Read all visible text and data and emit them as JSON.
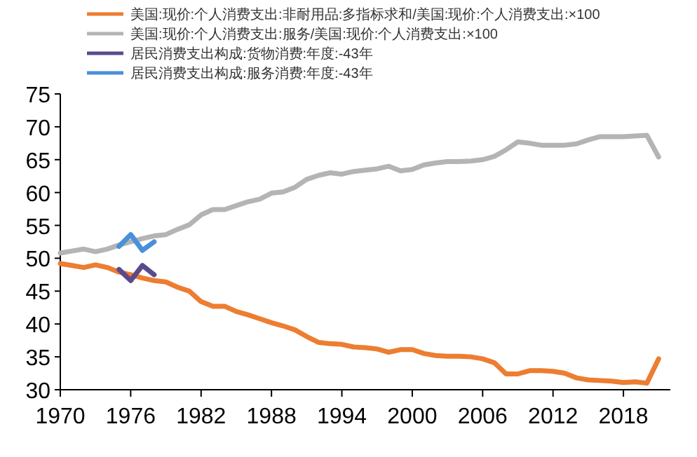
{
  "chart_data": {
    "type": "line",
    "x": [
      1970,
      1971,
      1972,
      1973,
      1974,
      1975,
      1976,
      1977,
      1978,
      1979,
      1980,
      1981,
      1982,
      1983,
      1984,
      1985,
      1986,
      1987,
      1988,
      1989,
      1990,
      1991,
      1992,
      1993,
      1994,
      1995,
      1996,
      1997,
      1998,
      1999,
      2000,
      2001,
      2002,
      2003,
      2004,
      2005,
      2006,
      2007,
      2008,
      2009,
      2010,
      2011,
      2012,
      2013,
      2014,
      2015,
      2016,
      2017,
      2018,
      2019,
      2020,
      2021
    ],
    "series": [
      {
        "name": "美国:现价:个人消费支出:非耐用品:多指标求和/美国:现价:个人消费支出:×100",
        "color": "#ed7d31",
        "values": [
          49.2,
          48.9,
          48.6,
          49.0,
          48.6,
          47.9,
          47.5,
          47.0,
          46.6,
          46.4,
          45.6,
          45.0,
          43.4,
          42.7,
          42.7,
          41.9,
          41.4,
          40.8,
          40.2,
          39.7,
          39.1,
          38.1,
          37.2,
          37.0,
          36.9,
          36.5,
          36.4,
          36.2,
          35.7,
          36.1,
          36.1,
          35.5,
          35.2,
          35.1,
          35.1,
          35.0,
          34.7,
          34.1,
          32.4,
          32.4,
          32.9,
          32.9,
          32.8,
          32.5,
          31.8,
          31.5,
          31.4,
          31.3,
          31.1,
          31.2,
          31.0,
          34.7
        ]
      },
      {
        "name": "美国:现价:个人消费支出:服务/美国:现价:个人消费支出:×100",
        "color": "#b4b4b4",
        "values": [
          50.8,
          51.1,
          51.4,
          51.0,
          51.4,
          52.0,
          52.5,
          53.0,
          53.4,
          53.6,
          54.4,
          55.1,
          56.6,
          57.4,
          57.4,
          58.0,
          58.6,
          59.0,
          59.9,
          60.1,
          60.8,
          62.0,
          62.6,
          63.0,
          62.8,
          63.2,
          63.4,
          63.6,
          64.0,
          63.3,
          63.5,
          64.2,
          64.5,
          64.7,
          64.7,
          64.8,
          65.0,
          65.5,
          66.5,
          67.7,
          67.5,
          67.2,
          67.2,
          67.2,
          67.4,
          68.0,
          68.5,
          68.5,
          68.5,
          68.6,
          68.7,
          65.4
        ]
      },
      {
        "name": "居民消费支出构成:货物消费:年度:-43年",
        "color": "#5b4a8a",
        "x": [
          1975,
          1976,
          1977,
          1978
        ],
        "values": [
          48.3,
          46.6,
          48.9,
          47.5
        ]
      },
      {
        "name": "居民消费支出构成:服务消费:年度:-43年",
        "color": "#4a90d9",
        "x": [
          1975,
          1976,
          1977,
          1978
        ],
        "values": [
          51.8,
          53.6,
          51.2,
          52.5
        ]
      }
    ],
    "xlim": [
      1970,
      2022
    ],
    "xticks": [
      1970,
      1976,
      1982,
      1988,
      1994,
      2000,
      2006,
      2012,
      2018
    ],
    "ylim": [
      30,
      75
    ],
    "yticks": [
      30,
      35,
      40,
      45,
      50,
      55,
      60,
      65,
      70,
      75
    ],
    "grid": false,
    "legend": "top",
    "marker": "none",
    "line_style": "solid"
  }
}
